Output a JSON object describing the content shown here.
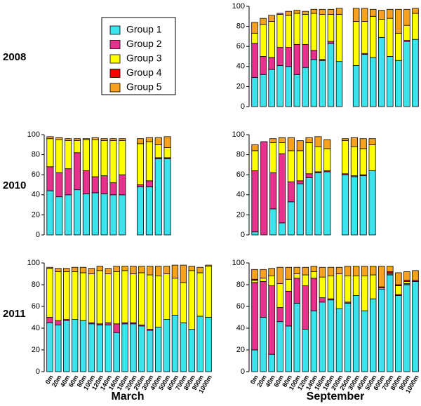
{
  "legend": [
    {
      "name": "Group 1",
      "color": "#3be3ec"
    },
    {
      "name": "Group 2",
      "color": "#e8318c"
    },
    {
      "name": "Group 3",
      "color": "#ffff00"
    },
    {
      "name": "Group 4",
      "color": "#ff0000"
    },
    {
      "name": "Group 5",
      "color": "#f7a21f"
    }
  ],
  "row_labels": [
    "2008",
    "2010",
    "2011"
  ],
  "column_labels": [
    "March",
    "September"
  ],
  "chart_data": [
    {
      "type": "bar",
      "stacked": true,
      "ylim": [
        0,
        100
      ],
      "yticks": [
        0,
        20,
        40,
        60,
        80,
        100
      ],
      "series": [
        {
          "values": [
            29,
            32,
            37,
            41,
            40,
            32,
            39,
            47,
            46,
            63,
            45,
            null,
            41,
            52,
            49,
            69,
            50,
            46,
            65,
            67
          ]
        },
        {
          "values": [
            34,
            18,
            12,
            18,
            19,
            30,
            23,
            9,
            1,
            2,
            0,
            null,
            0,
            1,
            0,
            0,
            0,
            0,
            1,
            0
          ]
        },
        {
          "values": [
            10,
            32,
            36,
            33,
            32,
            31,
            30,
            37,
            45,
            27,
            47,
            null,
            44,
            32,
            41,
            18,
            38,
            27,
            15,
            26
          ]
        },
        {
          "values": [
            0,
            0,
            0,
            0,
            0,
            0,
            0,
            0,
            0,
            0,
            0,
            null,
            0,
            0,
            0,
            0,
            0,
            0,
            0,
            0
          ]
        },
        {
          "values": [
            11,
            6,
            6,
            1,
            4,
            3,
            3,
            4,
            5,
            5,
            6,
            null,
            13,
            13,
            7,
            9,
            9,
            24,
            16,
            5
          ]
        }
      ]
    },
    {
      "type": "bar",
      "stacked": true,
      "ylim": [
        0,
        100
      ],
      "yticks": [
        0,
        20,
        40,
        60,
        80,
        100
      ],
      "series": [
        {
          "values": [
            44,
            38,
            40,
            45,
            41,
            42,
            41,
            40,
            40,
            null,
            48,
            48,
            76,
            76
          ]
        },
        {
          "values": [
            24,
            24,
            26,
            37,
            23,
            16,
            18,
            12,
            20,
            null,
            2,
            6,
            1,
            1
          ]
        },
        {
          "values": [
            28,
            33,
            28,
            12,
            31,
            37,
            35,
            42,
            34,
            null,
            41,
            39,
            13,
            10
          ]
        },
        {
          "values": [
            0,
            0,
            0,
            0,
            0,
            0,
            0,
            0,
            0,
            null,
            0,
            0,
            0,
            0
          ]
        },
        {
          "values": [
            2,
            2,
            2,
            2,
            1,
            2,
            2,
            2,
            2,
            null,
            5,
            4,
            7,
            11
          ]
        }
      ]
    },
    {
      "type": "bar",
      "stacked": true,
      "ylim": [
        0,
        100
      ],
      "yticks": [
        0,
        20,
        40,
        60,
        80,
        100
      ],
      "series": [
        {
          "values": [
            3,
            0,
            26,
            12,
            33,
            51,
            57,
            62,
            63,
            null,
            60,
            58,
            59,
            64
          ]
        },
        {
          "values": [
            61,
            93,
            36,
            69,
            20,
            3,
            4,
            1,
            1,
            null,
            1,
            1,
            1,
            0
          ]
        },
        {
          "values": [
            20,
            0,
            30,
            11,
            31,
            30,
            31,
            25,
            22,
            null,
            33,
            29,
            26,
            26
          ]
        },
        {
          "values": [
            0,
            0,
            0,
            0,
            0,
            0,
            0,
            0,
            0,
            null,
            0,
            0,
            0,
            0
          ]
        },
        {
          "values": [
            6,
            0,
            4,
            5,
            13,
            10,
            5,
            10,
            9,
            null,
            2,
            9,
            10,
            6
          ]
        }
      ]
    },
    {
      "type": "bar",
      "stacked": true,
      "ylim": [
        0,
        100
      ],
      "yticks": [
        0,
        20,
        40,
        60,
        80,
        100
      ],
      "categories": [
        "0m",
        "20m",
        "40m",
        "60m",
        "80m",
        "100m",
        "120m",
        "140m",
        "160m",
        "180m",
        "200m",
        "250m",
        "300m",
        "400m",
        "500m",
        "600m",
        "700m",
        "800m",
        "900m",
        "1000m"
      ],
      "series": [
        {
          "values": [
            45,
            43,
            47,
            48,
            47,
            44,
            43,
            43,
            36,
            44,
            44,
            42,
            38,
            41,
            48,
            52,
            45,
            39,
            51,
            50
          ]
        },
        {
          "values": [
            5,
            4,
            1,
            0,
            0,
            1,
            1,
            2,
            8,
            1,
            1,
            1,
            1,
            0,
            0,
            0,
            0,
            0,
            0,
            0
          ]
        },
        {
          "values": [
            45,
            45,
            44,
            44,
            44,
            45,
            49,
            45,
            48,
            48,
            45,
            48,
            50,
            47,
            42,
            34,
            37,
            54,
            40,
            47
          ]
        },
        {
          "values": [
            0,
            0,
            0,
            0,
            0,
            0,
            0,
            0,
            0,
            0,
            0,
            0,
            0,
            0,
            0,
            0,
            0,
            0,
            0,
            0
          ]
        },
        {
          "values": [
            1,
            3,
            3,
            4,
            5,
            5,
            4,
            5,
            5,
            4,
            7,
            6,
            8,
            9,
            7,
            12,
            16,
            4,
            5,
            1
          ]
        }
      ]
    },
    {
      "type": "bar",
      "stacked": true,
      "ylim": [
        0,
        100
      ],
      "yticks": [
        0,
        20,
        40,
        60,
        80,
        100
      ],
      "categories": [
        "0m",
        "20m",
        "40m",
        "60m",
        "80m",
        "100m",
        "120m",
        "140m",
        "160m",
        "180m",
        "200m",
        "250m",
        "300m",
        "400m",
        "500m",
        "600m",
        "700m",
        "800m",
        "900m",
        "1000m"
      ],
      "series": [
        {
          "values": [
            20,
            50,
            16,
            46,
            42,
            63,
            39,
            56,
            64,
            66,
            58,
            63,
            70,
            56,
            67,
            76,
            89,
            70,
            80,
            83
          ]
        },
        {
          "values": [
            62,
            33,
            63,
            13,
            32,
            23,
            40,
            30,
            4,
            1,
            0,
            1,
            0,
            0,
            0,
            0,
            1,
            1,
            1,
            1
          ]
        },
        {
          "values": [
            2,
            3,
            9,
            22,
            11,
            4,
            10,
            6,
            19,
            21,
            32,
            24,
            18,
            32,
            22,
            1,
            1,
            8,
            2,
            0
          ]
        },
        {
          "values": [
            1,
            0,
            0,
            0,
            0,
            0,
            0,
            0,
            0,
            0,
            0,
            0,
            0,
            0,
            0,
            1,
            1,
            1,
            1,
            0
          ]
        },
        {
          "values": [
            9,
            8,
            7,
            15,
            11,
            6,
            7,
            5,
            9,
            8,
            6,
            9,
            9,
            9,
            8,
            19,
            5,
            11,
            8,
            9
          ]
        }
      ]
    }
  ]
}
